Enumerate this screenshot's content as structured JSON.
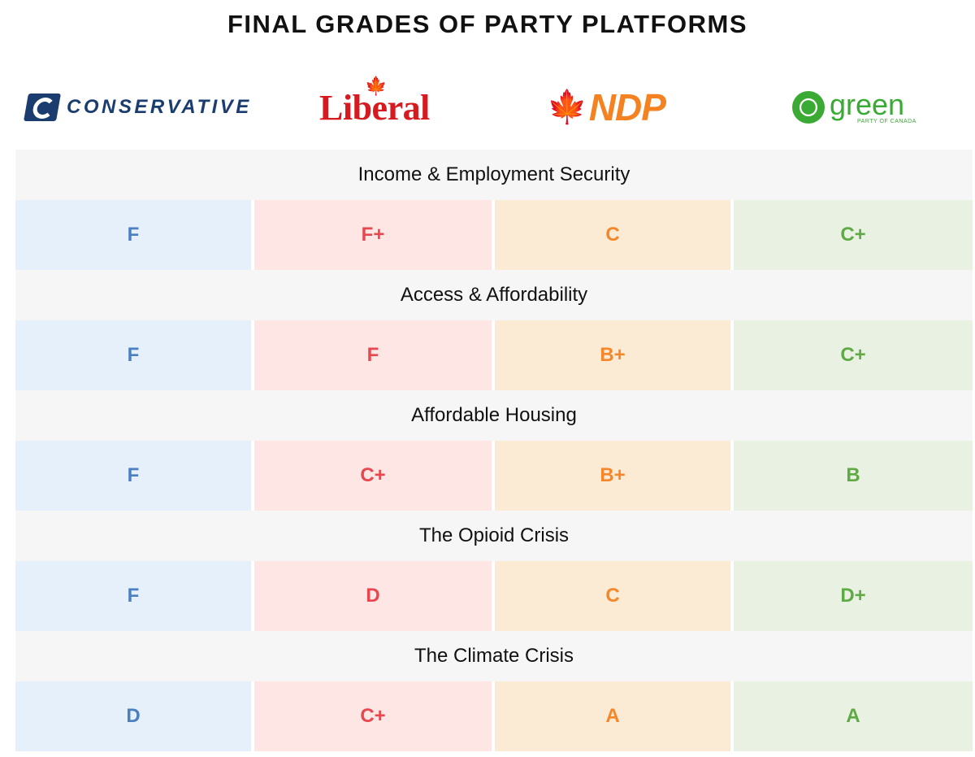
{
  "title": "FINAL GRADES OF PARTY PLATFORMS",
  "parties": [
    {
      "key": "conservative",
      "logo_text": "CONSERVATIVE",
      "text_color": "#4a7fc1",
      "cell_color": "#e6f0fb",
      "logo_icon": "conservative-c-icon"
    },
    {
      "key": "liberal",
      "logo_text": "Liberal",
      "text_color": "#e8474f",
      "cell_color": "#fde6e4",
      "logo_icon": "maple-leaf-icon"
    },
    {
      "key": "ndp",
      "logo_text": "NDP",
      "text_color": "#f5862a",
      "cell_color": "#fcebd4",
      "logo_icon": "maple-leaf-icon"
    },
    {
      "key": "green",
      "logo_text": "green",
      "logo_subtext": "PARTY OF CANADA",
      "text_color": "#5faa45",
      "cell_color": "#e9f1e2",
      "logo_icon": "flower-icon"
    }
  ],
  "chart_data": {
    "type": "table",
    "title": "FINAL GRADES OF PARTY PLATFORMS",
    "columns": [
      "CONSERVATIVE",
      "Liberal",
      "NDP",
      "green"
    ],
    "rows": [
      {
        "category": "Income & Employment Security",
        "grades": [
          "F",
          "F+",
          "C",
          "C+"
        ]
      },
      {
        "category": "Access & Affordability",
        "grades": [
          "F",
          "F",
          "B+",
          "C+"
        ]
      },
      {
        "category": "Affordable Housing",
        "grades": [
          "F",
          "C+",
          "B+",
          "B"
        ]
      },
      {
        "category": "The Opioid Crisis",
        "grades": [
          "F",
          "D",
          "C",
          "D+"
        ]
      },
      {
        "category": "The Climate Crisis",
        "grades": [
          "D",
          "C+",
          "A",
          "A"
        ]
      }
    ]
  }
}
